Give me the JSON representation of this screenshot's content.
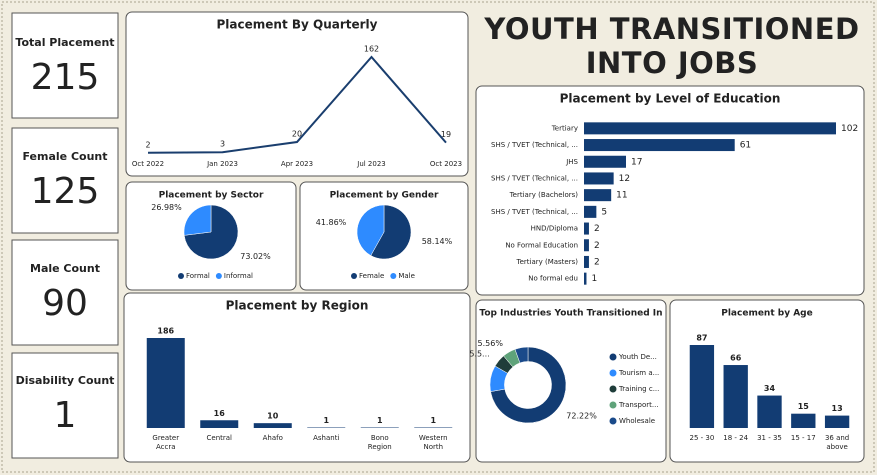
{
  "title": "YOUTH TRANSITIONED INTO JOBS",
  "cards": [
    {
      "label": "Total Placement",
      "value": 215
    },
    {
      "label": "Female Count",
      "value": 125
    },
    {
      "label": "Male Count",
      "value": 90
    },
    {
      "label": "Disability Count",
      "value": 1
    }
  ],
  "chart_data": [
    {
      "type": "line",
      "title": "Placement By Quarterly",
      "categories": [
        "Oct 2022",
        "Jan 2023",
        "Apr 2023",
        "Jul 2023",
        "Oct 2023"
      ],
      "values": [
        2,
        3,
        20,
        162,
        19
      ],
      "color": "#1a3e6e"
    },
    {
      "type": "pie",
      "title": "Placement by Sector",
      "categories": [
        "Formal",
        "Informal"
      ],
      "values": [
        73.02,
        26.98
      ],
      "value_labels": [
        "73.02%",
        "26.98%"
      ],
      "colors": [
        "#123c73",
        "#2e8bff"
      ]
    },
    {
      "type": "pie",
      "title": "Placement by Gender",
      "categories": [
        "Female",
        "Male"
      ],
      "values": [
        58.14,
        41.86
      ],
      "value_labels": [
        "58.14%",
        "41.86%"
      ],
      "colors": [
        "#123c73",
        "#2e8bff"
      ]
    },
    {
      "type": "bar",
      "title": "Placement by Region",
      "categories": [
        "Greater Accra",
        "Central",
        "Ahafo",
        "Ashanti",
        "Bono Region",
        "Western North"
      ],
      "values": [
        186,
        16,
        10,
        1,
        1,
        1
      ],
      "color": "#123c73"
    },
    {
      "type": "hbar",
      "title": "Placement by Level of Education",
      "categories": [
        "Tertiary",
        "SHS / TVET (Technical, ...",
        "JHS",
        "SHS / TVET (Technical, ...",
        "Tertiary (Bachelors)",
        "SHS / TVET (Technical, ...",
        "HND/Diploma",
        "No Formal Education",
        "Tertiary (Masters)",
        "No formal edu"
      ],
      "values": [
        102,
        61,
        17,
        12,
        11,
        5,
        2,
        2,
        2,
        1
      ],
      "color": "#123c73"
    },
    {
      "type": "donut",
      "title": "Top Industries Youth Transitioned In",
      "categories": [
        "Youth De...",
        "Tourism a...",
        "Training c...",
        "Transport...",
        "Wholesale"
      ],
      "values": [
        72.22,
        11.11,
        5.56,
        5.56,
        5.56
      ],
      "value_labels": [
        "72.22%",
        null,
        "5.5...",
        "5.56%",
        null
      ],
      "colors": [
        "#123c73",
        "#2e8bff",
        "#1f3d3a",
        "#5fa37a",
        "#1a4a8a"
      ]
    },
    {
      "type": "bar",
      "title": "Placement by Age",
      "categories": [
        "25 - 30",
        "18 - 24",
        "31 - 35",
        "15 - 17",
        "36 and above"
      ],
      "values": [
        87,
        66,
        34,
        15,
        13
      ],
      "color": "#123c73"
    }
  ]
}
